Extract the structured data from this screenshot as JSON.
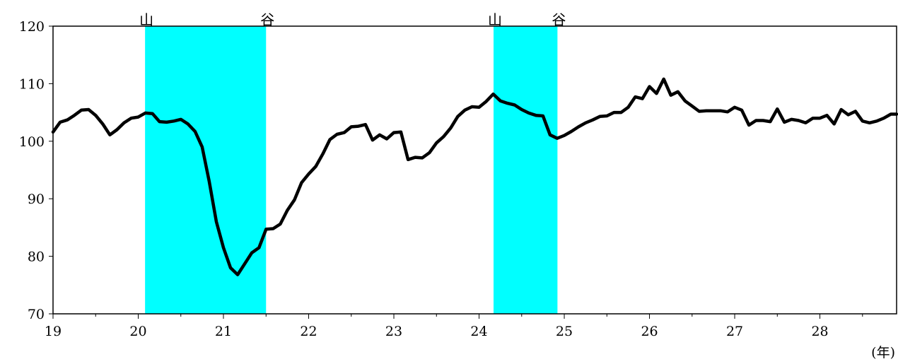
{
  "chart_data": {
    "type": "line",
    "x_unit_label": "(年)",
    "ylim": [
      70,
      120
    ],
    "yticks": [
      70,
      80,
      90,
      100,
      110,
      120
    ],
    "xlim": [
      19,
      28.9
    ],
    "xticks": [
      19,
      20,
      21,
      22,
      23,
      24,
      25,
      26,
      27,
      28
    ],
    "grid": false,
    "colors": {
      "line": "#000000",
      "band": "#00ffff"
    },
    "recession_bands": [
      {
        "start": 20.08,
        "end": 21.5,
        "peak_label": "山",
        "trough_label": "谷"
      },
      {
        "start": 24.17,
        "end": 24.92,
        "peak_label": "山",
        "trough_label": "谷"
      }
    ],
    "series": [
      {
        "x": [
          19.0,
          19.083,
          19.167,
          19.25,
          19.333,
          19.417,
          19.5,
          19.583,
          19.667,
          19.75,
          19.833,
          19.917,
          20.0,
          20.083,
          20.167,
          20.25,
          20.333,
          20.417,
          20.5,
          20.583,
          20.667,
          20.75,
          20.833,
          20.917,
          21.0,
          21.083,
          21.167,
          21.25,
          21.333,
          21.417,
          21.5,
          21.583,
          21.667,
          21.75,
          21.833,
          21.917,
          22.0,
          22.083,
          22.167,
          22.25,
          22.333,
          22.417,
          22.5,
          22.583,
          22.667,
          22.75,
          22.833,
          22.917,
          23.0,
          23.083,
          23.167,
          23.25,
          23.333,
          23.417,
          23.5,
          23.583,
          23.667,
          23.75,
          23.833,
          23.917,
          24.0,
          24.083,
          24.167,
          24.25,
          24.333,
          24.417,
          24.5,
          24.583,
          24.667,
          24.75,
          24.833,
          24.917,
          25.0,
          25.083,
          25.167,
          25.25,
          25.333,
          25.417,
          25.5,
          25.583,
          25.667,
          25.75,
          25.833,
          25.917,
          26.0,
          26.083,
          26.167,
          26.25,
          26.333,
          26.417,
          26.5,
          26.583,
          26.667,
          26.75,
          26.833,
          26.917,
          27.0,
          27.083,
          27.167,
          27.25,
          27.333,
          27.417,
          27.5,
          27.583,
          27.667,
          27.75,
          27.833,
          27.917,
          28.0,
          28.083,
          28.167,
          28.25,
          28.333,
          28.417,
          28.5,
          28.583,
          28.667,
          28.75,
          28.833,
          28.9
        ],
        "values": [
          101.6,
          103.3,
          103.7,
          104.5,
          105.4,
          105.5,
          104.5,
          103.0,
          101.1,
          102.0,
          103.2,
          104.0,
          104.2,
          104.9,
          104.8,
          103.4,
          103.3,
          103.5,
          103.8,
          103.0,
          101.7,
          99.0,
          93.0,
          86.0,
          81.5,
          78.0,
          76.8,
          78.7,
          80.6,
          81.5,
          84.7,
          84.8,
          85.6,
          88.0,
          89.8,
          92.8,
          94.3,
          95.6,
          97.8,
          100.3,
          101.2,
          101.5,
          102.5,
          102.6,
          102.9,
          100.2,
          101.1,
          100.4,
          101.5,
          101.6,
          96.8,
          97.2,
          97.1,
          98.0,
          99.7,
          100.8,
          102.3,
          104.3,
          105.4,
          106.0,
          105.9,
          106.9,
          108.2,
          107.0,
          106.6,
          106.3,
          105.5,
          104.9,
          104.5,
          104.4,
          101.1,
          100.5,
          101.0,
          101.7,
          102.5,
          103.2,
          103.7,
          104.3,
          104.4,
          105.0,
          105.0,
          105.9,
          107.7,
          107.4,
          109.5,
          108.3,
          110.8,
          108.0,
          108.6,
          107.0,
          106.1,
          105.2,
          105.3,
          105.3,
          105.3,
          105.1,
          105.9,
          105.4,
          102.8,
          103.6,
          103.6,
          103.4,
          105.6,
          103.3,
          103.8,
          103.6,
          103.2,
          104.0,
          104.0,
          104.5,
          103.0,
          105.5,
          104.6,
          105.2,
          103.5,
          103.2,
          103.5,
          104.0,
          104.7,
          104.7
        ]
      }
    ]
  }
}
